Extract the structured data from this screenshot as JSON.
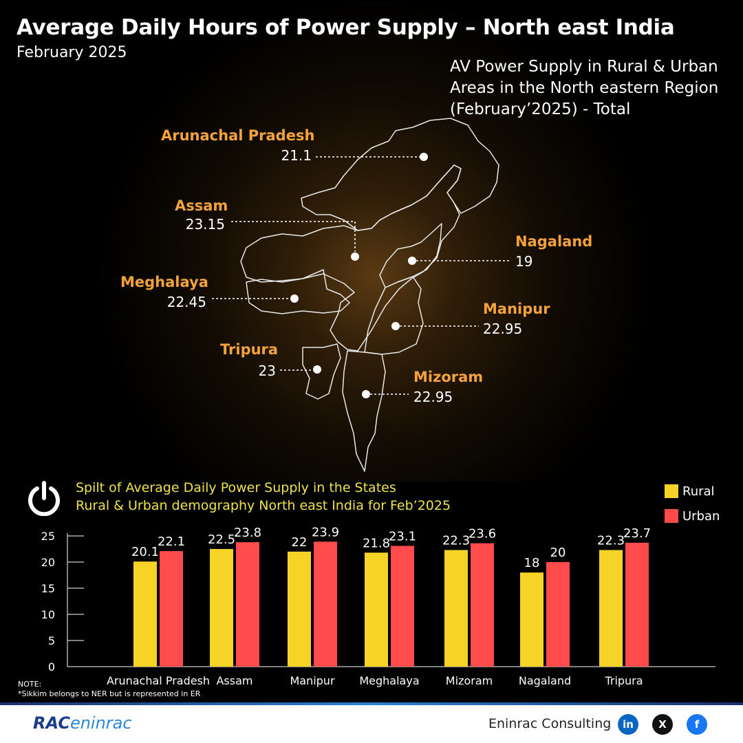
{
  "title": "Average Daily Hours of Power Supply – North east India",
  "subtitle": "February 2025",
  "map_caption": {
    "line1": "AV Power Supply in Rural & Urban",
    "line2": "Areas in the North eastern Region",
    "line3": "(February’2025) - Total"
  },
  "map_states": [
    {
      "name": "Arunachal Pradesh",
      "value": "21.1"
    },
    {
      "name": "Assam",
      "value": "23.15"
    },
    {
      "name": "Nagaland",
      "value": "19"
    },
    {
      "name": "Meghalaya",
      "value": "22.45"
    },
    {
      "name": "Manipur",
      "value": "22.95"
    },
    {
      "name": "Tripura",
      "value": "23"
    },
    {
      "name": "Mizoram",
      "value": "22.95"
    }
  ],
  "chart_caption": {
    "line1": "Spilt of Average Daily Power Supply in the States",
    "line2": "Rural & Urban demography North east India for Feb’2025"
  },
  "icons": {
    "power": "power-icon"
  },
  "colors": {
    "rural": "#f5d327",
    "urban": "#ff4b4b",
    "state_label": "#f4a23a",
    "caption": "#f0e24a"
  },
  "chart_data": {
    "type": "bar",
    "categories": [
      "Arunachal Pradesh",
      "Assam",
      "Manipur",
      "Meghalaya",
      "Mizoram",
      "Nagaland",
      "Tripura"
    ],
    "series": [
      {
        "name": "Rural",
        "values": [
          20.1,
          22.5,
          22,
          21.8,
          22.3,
          18,
          22.3
        ]
      },
      {
        "name": "Urban",
        "values": [
          22.1,
          23.8,
          23.9,
          23.1,
          23.6,
          20,
          23.7
        ]
      }
    ],
    "yticks": [
      0,
      5,
      10,
      15,
      20,
      25
    ],
    "ylim": [
      0,
      25
    ],
    "legend": "top-right",
    "grid": false
  },
  "note": {
    "label": "NOTE:",
    "text": "*Sikkim belongs to NER but is represented in ER"
  },
  "footer": {
    "logo_left": "RAC",
    "logo_right": "eninrac",
    "company": "Eninrac Consulting",
    "social": [
      {
        "icon": "linkedin-icon",
        "glyph": "in",
        "color": "#0a66c2"
      },
      {
        "icon": "x-icon",
        "glyph": "X",
        "color": "#111111"
      },
      {
        "icon": "facebook-icon",
        "glyph": "f",
        "color": "#1877f2"
      }
    ]
  }
}
